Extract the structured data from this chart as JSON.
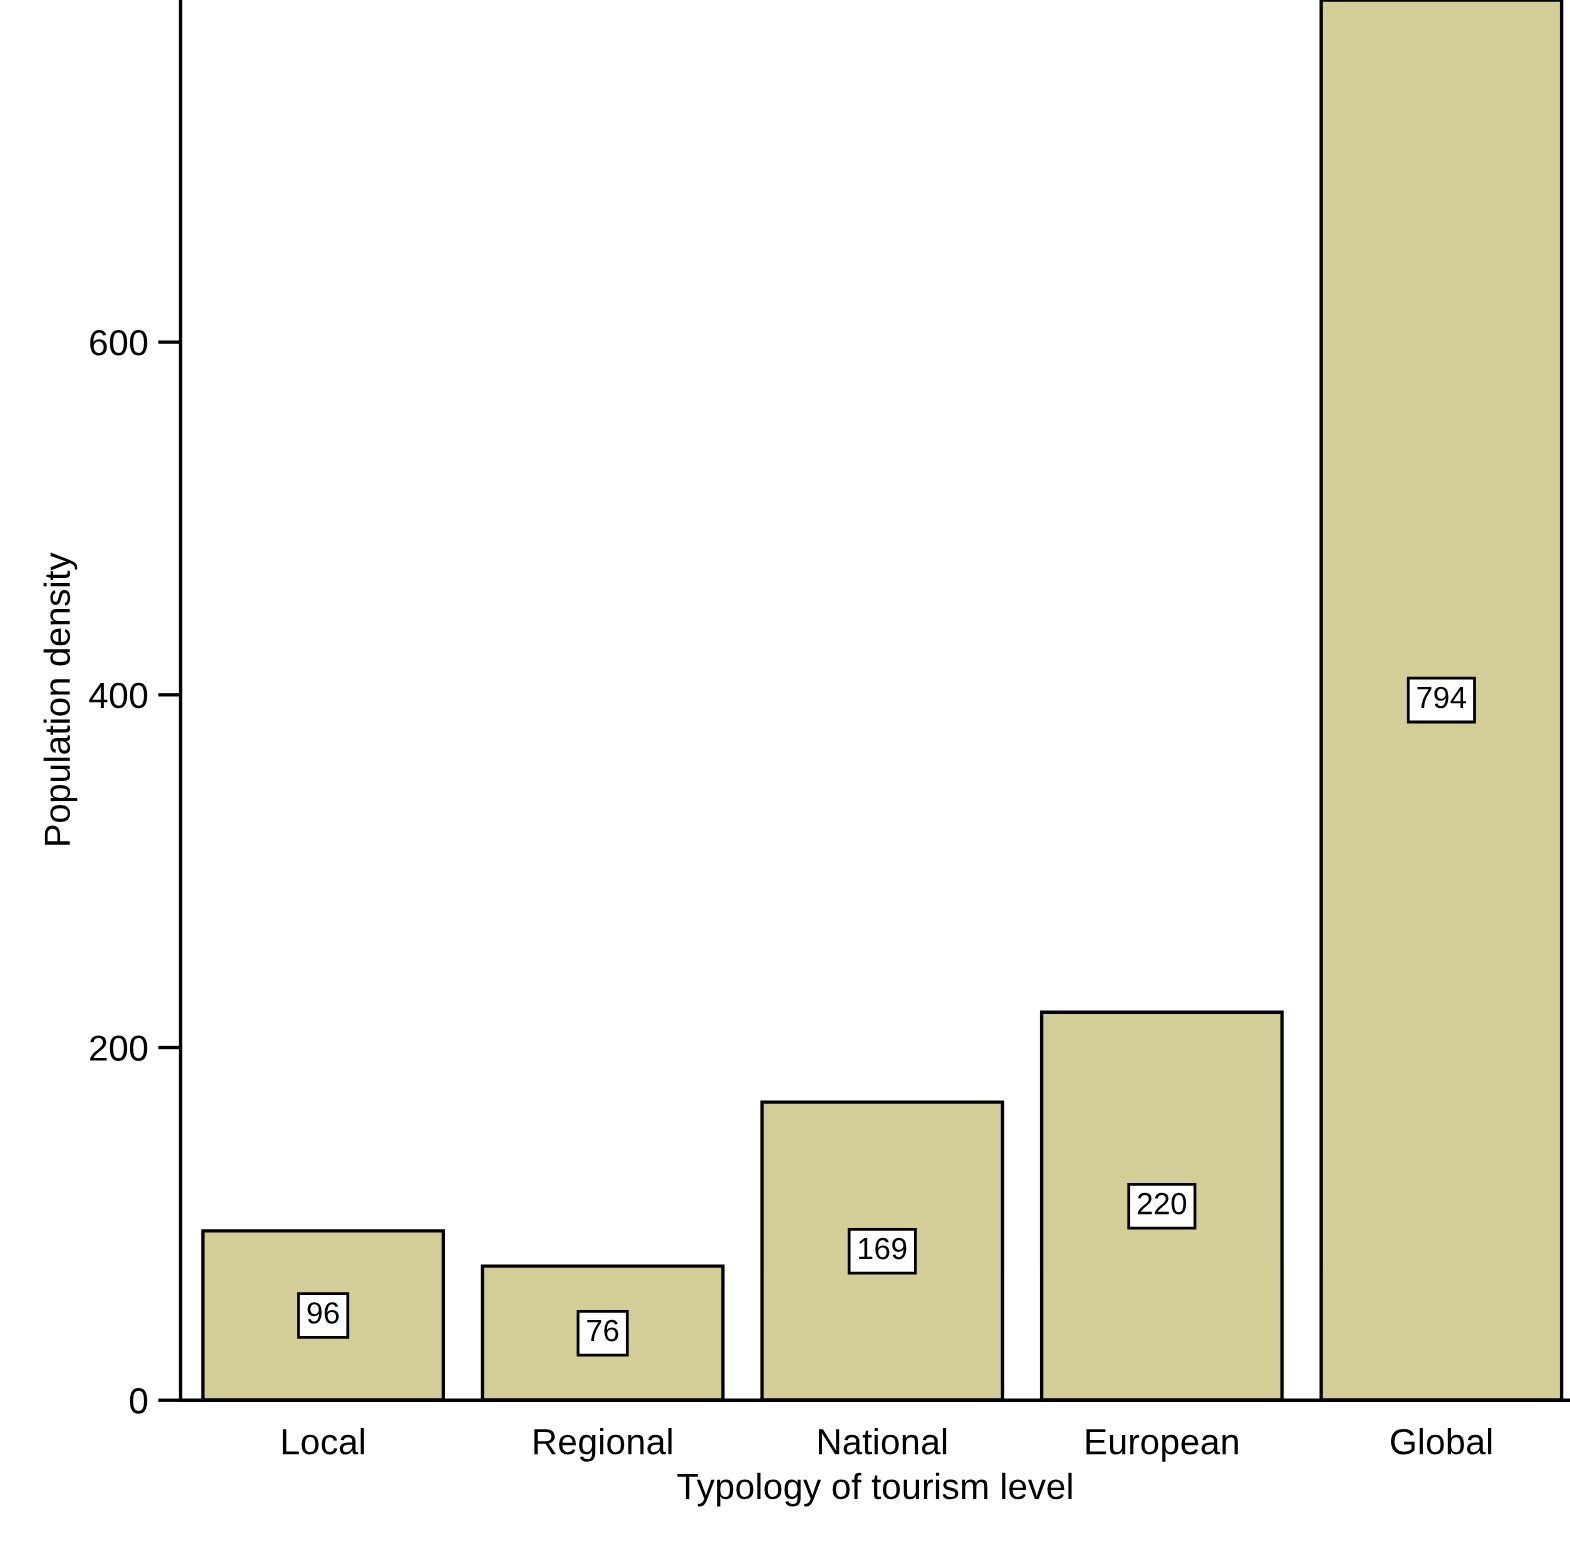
{
  "chart_data": {
    "type": "bar",
    "xlabel": "Typology of tourism level",
    "ylabel": "Population density",
    "categories": [
      "Local",
      "Regional",
      "National",
      "European",
      "Global"
    ],
    "values": [
      96,
      76,
      169,
      220,
      794
    ],
    "color": "#d3cd98",
    "ylim": [
      0,
      794
    ],
    "yticks": [
      0,
      200,
      400,
      600
    ],
    "data_labels": true,
    "grid": false,
    "legend": false
  }
}
